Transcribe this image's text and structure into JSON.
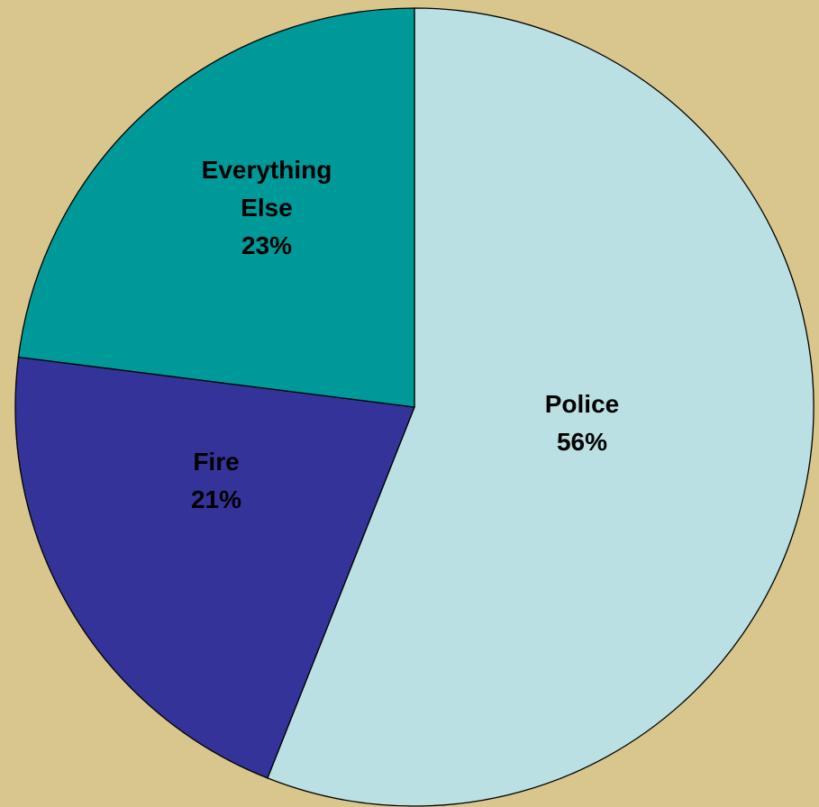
{
  "chart_data": {
    "type": "pie",
    "slices": [
      {
        "label_lines": [
          "Police"
        ],
        "value": 56,
        "value_label": "56%",
        "color": "#BAE0E3"
      },
      {
        "label_lines": [
          "Fire"
        ],
        "value": 21,
        "value_label": "21%",
        "color": "#333399"
      },
      {
        "label_lines": [
          "Everything",
          "Else"
        ],
        "value": 23,
        "value_label": "23%",
        "color": "#009999"
      }
    ],
    "start_angle": "12 o'clock",
    "direction": "clockwise",
    "legend": "none"
  },
  "colors": {
    "background": "#D8C68D",
    "outline": "#000000"
  }
}
